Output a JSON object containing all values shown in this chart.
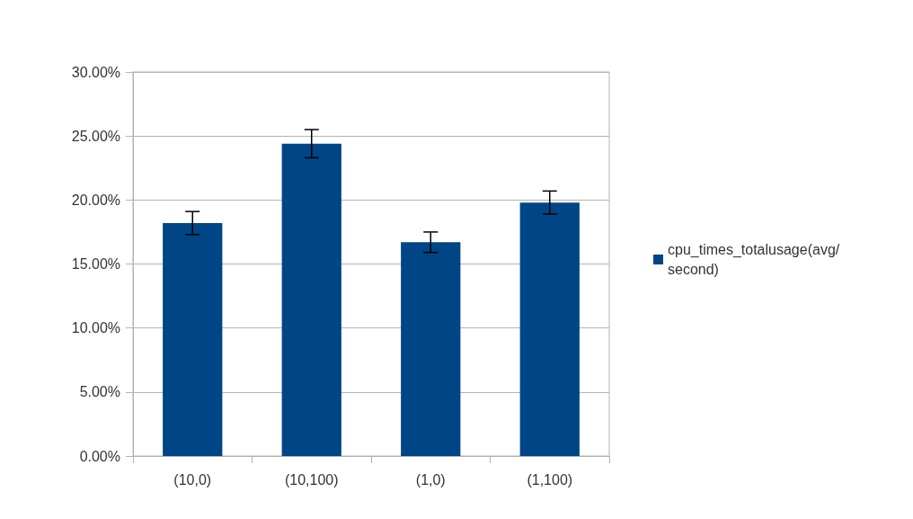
{
  "chart_data": {
    "type": "bar",
    "categories": [
      "(10,0)",
      "(10,100)",
      "(1,0)",
      "(1,100)"
    ],
    "series": [
      {
        "name": "cpu_times_totalusage(avg/second)",
        "color": "#004586",
        "values": [
          18.2,
          24.4,
          16.7,
          19.8
        ],
        "errors": [
          0.9,
          1.1,
          0.8,
          0.9
        ]
      }
    ],
    "ylim": [
      0,
      30
    ],
    "yticks": [
      {
        "value": 0,
        "label": "0.00%"
      },
      {
        "value": 5,
        "label": "5.00%"
      },
      {
        "value": 10,
        "label": "10.00%"
      },
      {
        "value": 15,
        "label": "15.00%"
      },
      {
        "value": 20,
        "label": "20.00%"
      },
      {
        "value": 25,
        "label": "25.00%"
      },
      {
        "value": 30,
        "label": "30.00%"
      }
    ],
    "grid": "y",
    "legend": "right"
  }
}
